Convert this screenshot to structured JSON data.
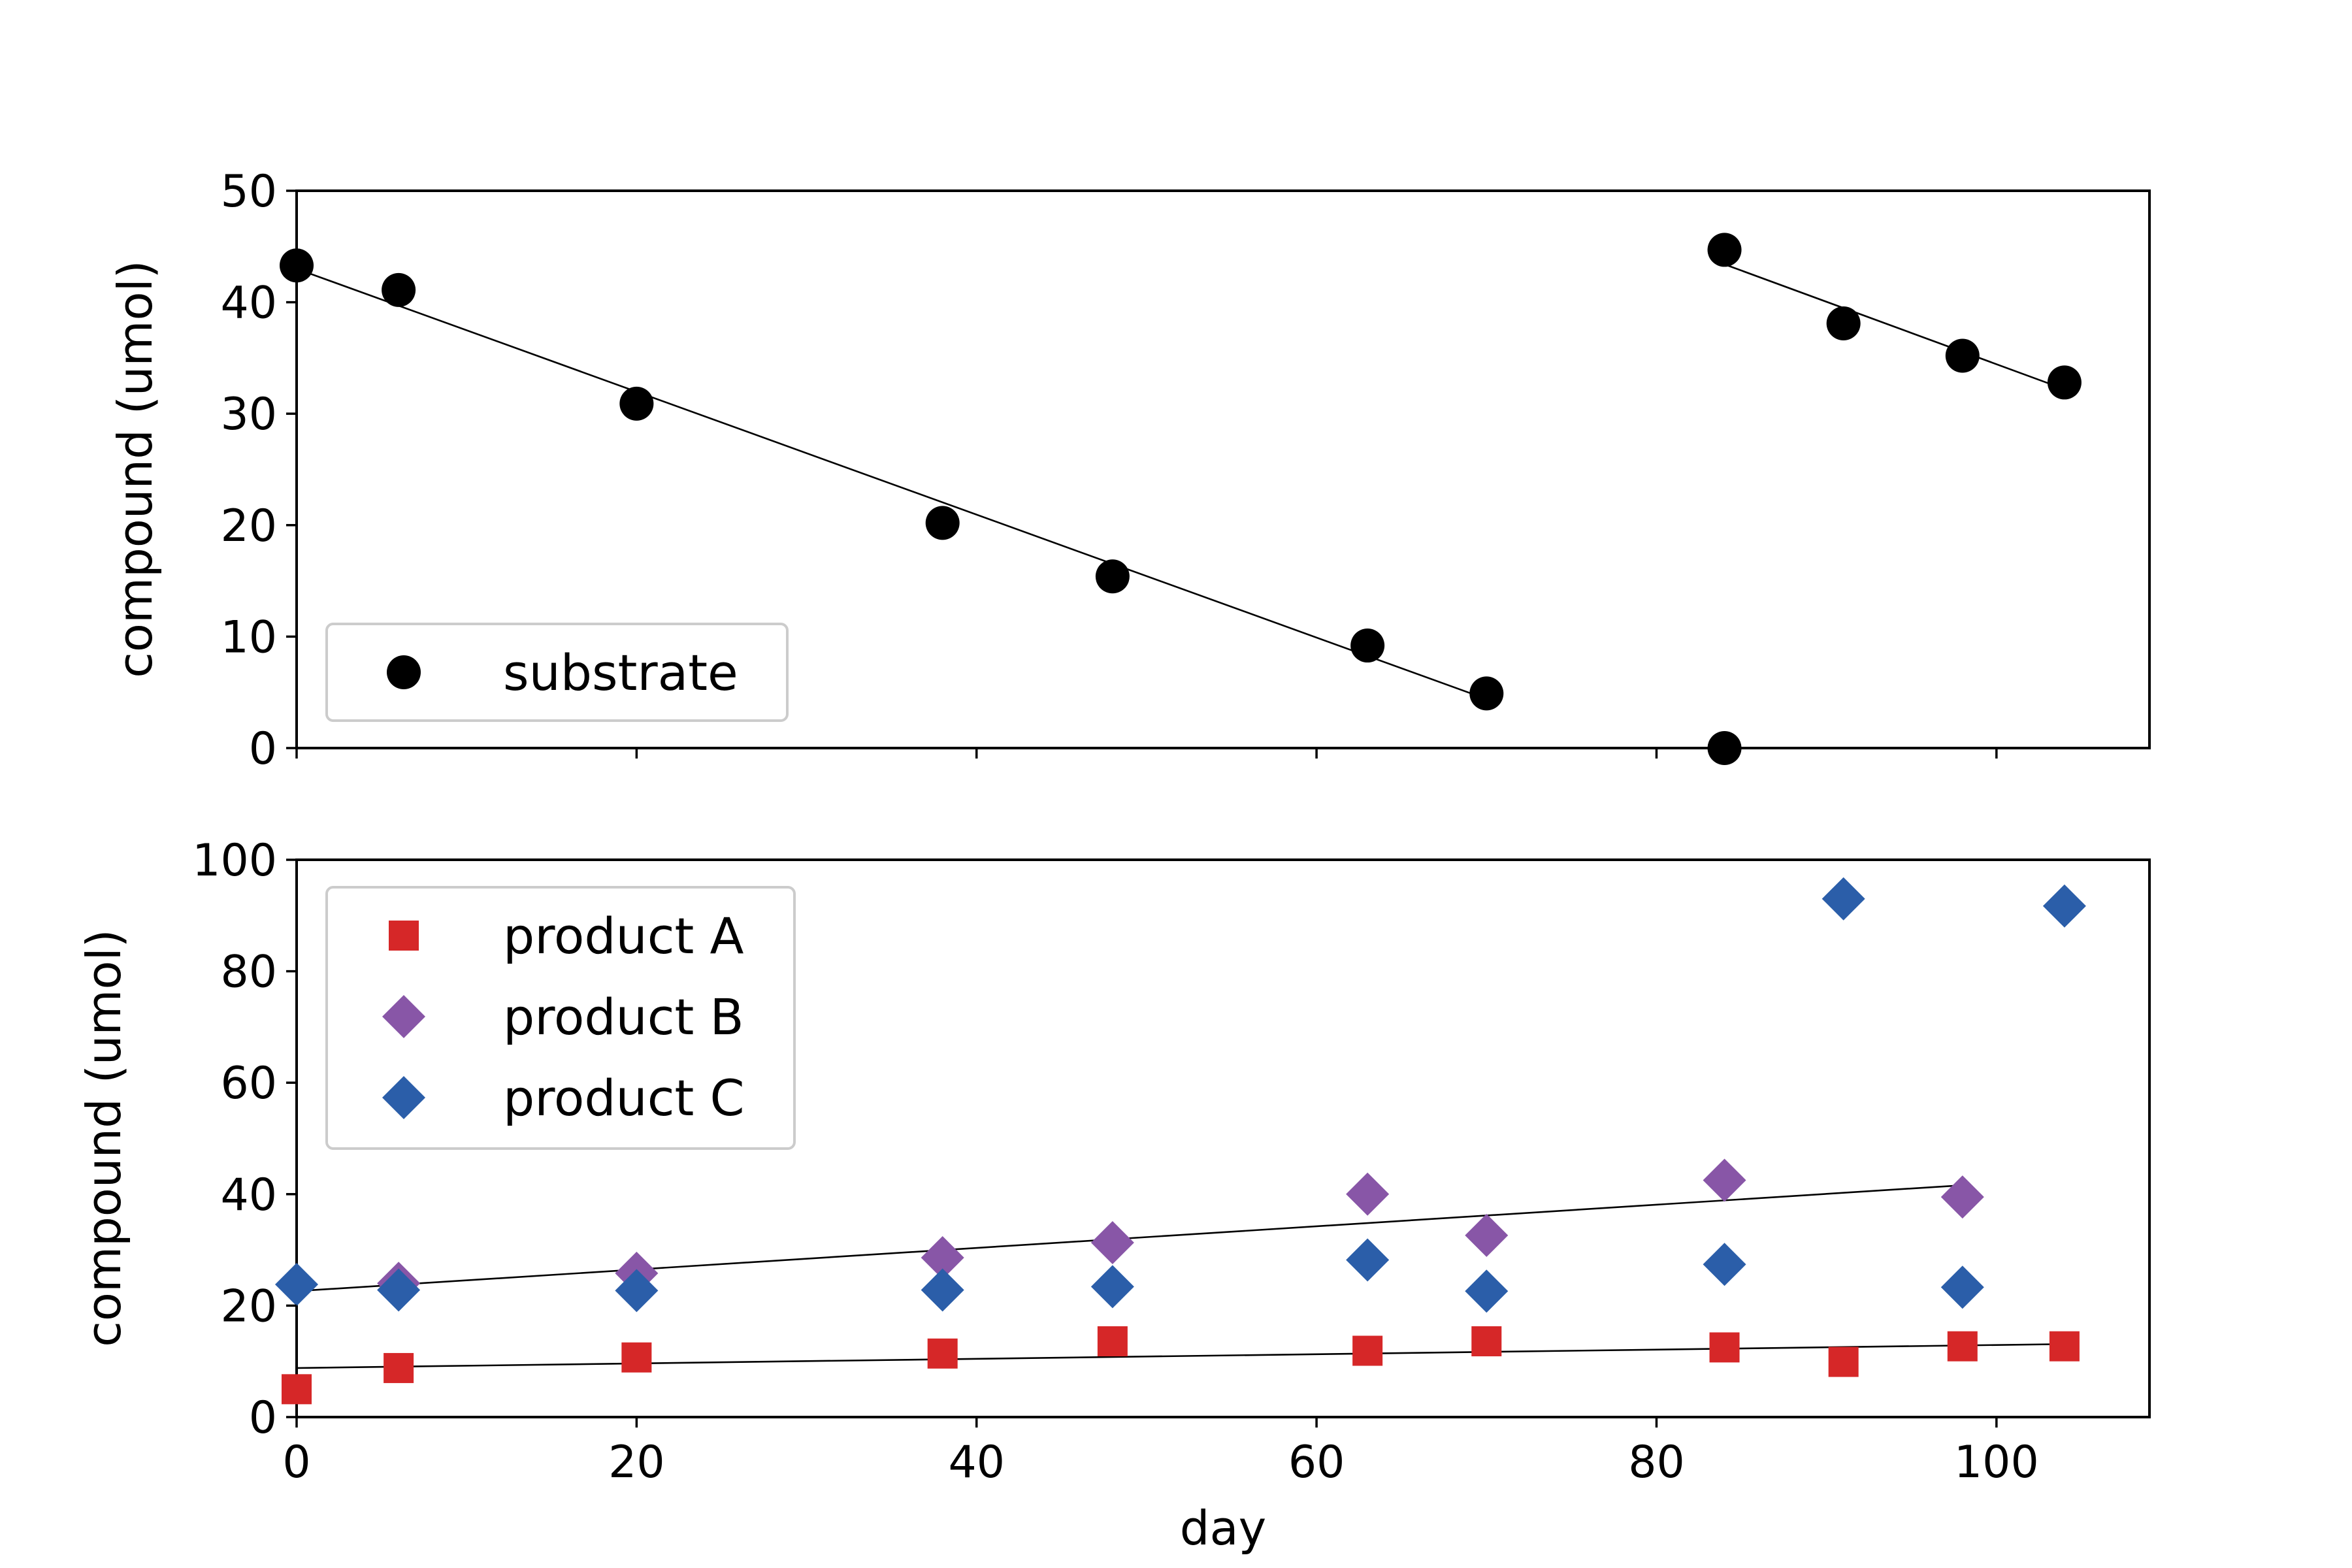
{
  "chart_data": [
    {
      "type": "scatter",
      "panel": "top",
      "xlabel": "",
      "ylabel": "compound (umol)",
      "xlim": [
        0,
        109
      ],
      "ylim": [
        0,
        50
      ],
      "xticks": [
        0,
        20,
        40,
        60,
        80,
        100
      ],
      "xtick_labels_visible": false,
      "yticks": [
        0,
        10,
        20,
        30,
        40,
        50
      ],
      "ytick_labels": [
        "0",
        "10",
        "20",
        "30",
        "40",
        "50"
      ],
      "grid": false,
      "legend_position": "lower-left",
      "series": [
        {
          "name": "substrate",
          "marker": "circle",
          "color": "#000000",
          "x": [
            0,
            6,
            20,
            38,
            48,
            63,
            70,
            84,
            84,
            91,
            98,
            104
          ],
          "y": [
            43.3,
            41.1,
            30.9,
            20.2,
            15.4,
            9.2,
            4.9,
            44.7,
            0.0,
            38.1,
            35.2,
            32.8
          ]
        }
      ],
      "fit_lines": [
        {
          "color": "#000000",
          "x": [
            0,
            70
          ],
          "y": [
            43.0,
            4.4
          ]
        },
        {
          "color": "#000000",
          "x": [
            84,
            104
          ],
          "y": [
            43.4,
            32.2
          ]
        }
      ]
    },
    {
      "type": "scatter",
      "panel": "bottom",
      "xlabel": "day",
      "ylabel": "compound (umol)",
      "xlim": [
        0,
        109
      ],
      "ylim": [
        0,
        100
      ],
      "xticks": [
        0,
        20,
        40,
        60,
        80,
        100
      ],
      "xtick_labels": [
        "0",
        "20",
        "40",
        "60",
        "80",
        "100"
      ],
      "yticks": [
        0,
        20,
        40,
        60,
        80,
        100
      ],
      "ytick_labels": [
        "0",
        "20",
        "40",
        "60",
        "80",
        "100"
      ],
      "grid": false,
      "legend_position": "upper-left",
      "series": [
        {
          "name": "product A",
          "marker": "square",
          "color": "#d62728",
          "x": [
            0,
            6,
            20,
            38,
            48,
            63,
            70,
            84,
            91,
            98,
            104
          ],
          "y": [
            5.0,
            8.8,
            10.7,
            11.4,
            13.6,
            11.9,
            13.6,
            12.5,
            9.9,
            12.7,
            12.7
          ]
        },
        {
          "name": "product B",
          "marker": "diamond",
          "color": "#8856a7",
          "x": [
            6,
            20,
            38,
            48,
            63,
            70,
            84,
            98
          ],
          "y": [
            24.0,
            25.8,
            28.6,
            31.3,
            40.0,
            32.6,
            42.5,
            39.5
          ]
        },
        {
          "name": "product C",
          "marker": "diamond",
          "color": "#2b5ea9",
          "x": [
            0,
            6,
            20,
            38,
            48,
            63,
            70,
            84,
            91,
            98,
            104
          ],
          "y": [
            23.8,
            22.8,
            22.7,
            22.8,
            23.4,
            28.2,
            22.6,
            27.4,
            93.0,
            23.3,
            91.7
          ]
        }
      ],
      "fit_lines": [
        {
          "color": "#000000",
          "x": [
            0,
            98
          ],
          "y": [
            22.6,
            41.6
          ]
        },
        {
          "color": "#000000",
          "x": [
            0,
            104
          ],
          "y": [
            8.8,
            13.1
          ]
        }
      ]
    }
  ]
}
